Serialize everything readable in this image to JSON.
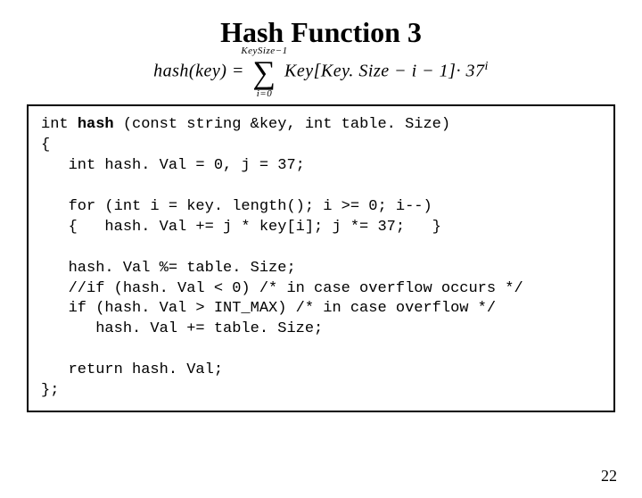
{
  "title": "Hash Function 3",
  "formula": {
    "lhs": "hash(key) =",
    "sum_upper": "KeySize−1",
    "sum_lower": "i=0",
    "rhs_main": "Key[Key. Size − i − 1]· 37",
    "rhs_exp": "i"
  },
  "code": {
    "l1a": "int ",
    "l1b": "hash",
    "l1c": " (const string &key, int table. Size)",
    "l2": "{",
    "l3": "   int hash. Val = 0, j = 37;",
    "l4": "",
    "l5": "   for (int i = key. length(); i >= 0; i--)",
    "l6": "   {   hash. Val += j * key[i]; j *= 37;   }",
    "l7": "",
    "l8": "   hash. Val %= table. Size;",
    "l9": "   //if (hash. Val < 0) /* in case overflow occurs */",
    "l10": "   if (hash. Val > INT_MAX) /* in case overflow */",
    "l11": "      hash. Val += table. Size;",
    "l12": "",
    "l13": "   return hash. Val;",
    "l14": "};"
  },
  "pagenum": "22",
  "colors": {
    "background": "#ffffff",
    "text": "#000000",
    "border": "#000000"
  },
  "fonts": {
    "title_family": "Times New Roman",
    "title_size_pt": 24,
    "title_weight": "bold",
    "code_family": "Courier New",
    "code_size_pt": 13,
    "formula_family": "Times New Roman",
    "formula_size_pt": 15
  }
}
